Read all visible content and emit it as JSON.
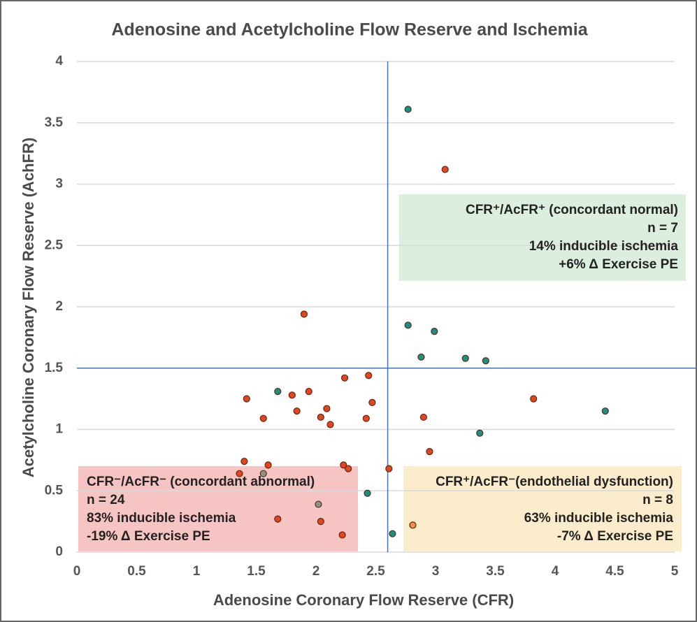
{
  "chart_data": {
    "type": "scatter",
    "title": "Adenosine and Acetylcholine Flow Reserve and Ischemia",
    "x_label": "Adenosine Coronary Flow Reserve (CFR)",
    "y_label": "Acetylcholine  Coronary Flow Reserve (AchFR)",
    "xlim": [
      0,
      5
    ],
    "ylim": [
      0,
      4
    ],
    "xticks": [
      0,
      0.5,
      1,
      1.5,
      2,
      2.5,
      3,
      3.5,
      4,
      4.5,
      5
    ],
    "yticks": [
      0,
      0.5,
      1,
      1.5,
      2,
      2.5,
      3,
      3.5,
      4
    ],
    "grid": true,
    "reference_lines": {
      "x": 2.6,
      "y": 1.5,
      "color": "#4a6fb5"
    },
    "series": [
      {
        "color": "#1a9080",
        "x": [
          2.77,
          2.77,
          2.99,
          2.88,
          3.25,
          3.42,
          1.68,
          4.42,
          3.37,
          2.43,
          2.64
        ],
        "values": [
          3.61,
          1.85,
          1.8,
          1.59,
          1.58,
          1.56,
          1.31,
          1.15,
          0.97,
          0.48,
          0.15
        ]
      },
      {
        "color": "#e5441e",
        "x": [
          3.08,
          1.9,
          1.42,
          1.8,
          1.94,
          2.24,
          2.44,
          2.47,
          2.09,
          1.84,
          2.04,
          1.56,
          2.12,
          2.42,
          2.9,
          3.82,
          2.95,
          1.4,
          1.6,
          2.23,
          2.27,
          2.61,
          1.36,
          1.68,
          2.04,
          2.22
        ],
        "values": [
          3.12,
          1.94,
          1.25,
          1.28,
          1.31,
          1.42,
          1.44,
          1.22,
          1.17,
          1.15,
          1.1,
          1.09,
          1.04,
          1.09,
          1.1,
          1.25,
          0.82,
          0.74,
          0.71,
          0.71,
          0.68,
          0.68,
          0.64,
          0.27,
          0.25,
          0.14
        ]
      },
      {
        "color": "#8a9488",
        "x": [
          1.56,
          2.02
        ],
        "values": [
          0.64,
          0.39
        ]
      },
      {
        "color": "#f0904a",
        "x": [
          2.81
        ],
        "values": [
          0.22
        ]
      }
    ],
    "annotations": [
      {
        "color": "#dcefdf",
        "lines": [
          "CFR⁺/AcFR⁺ (concordant normal)",
          "n = 7",
          "14% inducible ischemia",
          "+6% Δ Exercise PE"
        ]
      },
      {
        "color": "#f6c4c2",
        "lines": [
          "CFR⁻/AcFR⁻ (concordant abnormal)",
          "n = 24",
          "83% inducible ischemia",
          "-19% Δ Exercise PE"
        ]
      },
      {
        "color": "#fbeccb",
        "lines": [
          "CFR⁺/AcFR⁻(endothelial dysfunction)",
          "n = 8",
          "63% inducible ischemia",
          "-7% Δ Exercise PE"
        ]
      }
    ]
  }
}
